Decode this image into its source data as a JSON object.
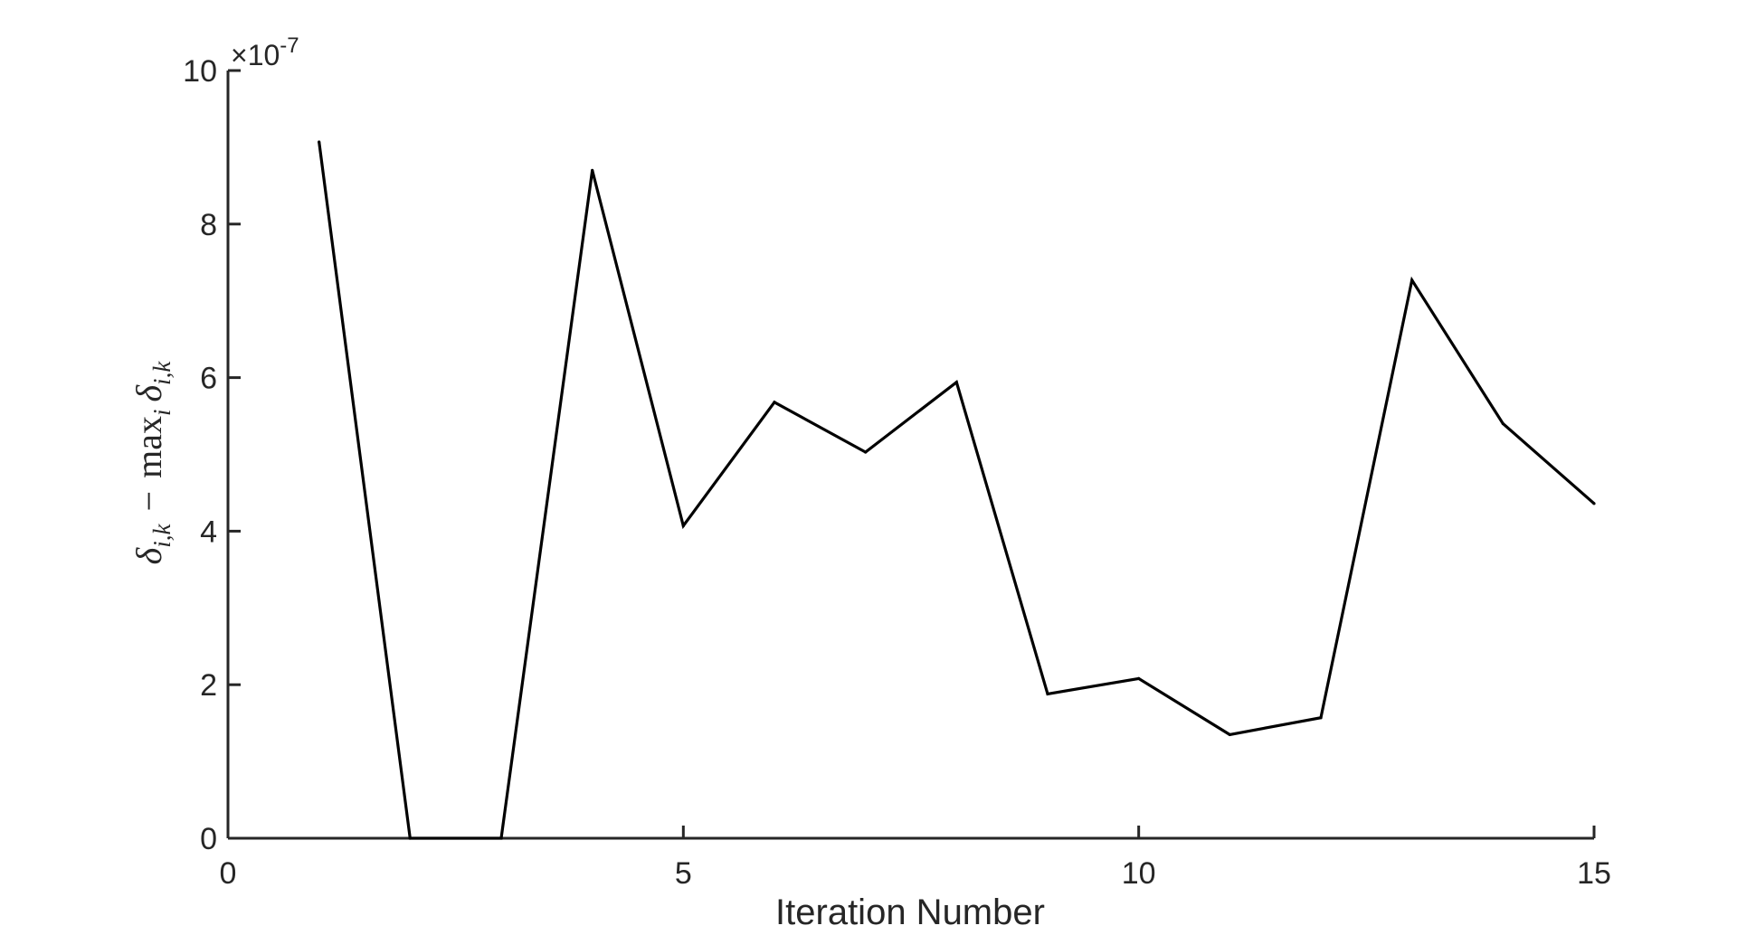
{
  "chart_data": {
    "type": "line",
    "title": "",
    "xlabel": "Iteration Number",
    "ylabel": {
      "delta": "δ",
      "sub": "i,k",
      "minus": "−",
      "max": "max",
      "max_sub": "i"
    },
    "y_multiplier": "×10",
    "y_exponent": "-7",
    "xlim": [
      0,
      15
    ],
    "ylim": [
      0,
      10
    ],
    "xticks": [
      0,
      5,
      10,
      15
    ],
    "yticks": [
      0,
      2,
      4,
      6,
      8,
      10
    ],
    "grid": false,
    "series": [
      {
        "color": "#000000",
        "x": [
          1,
          2,
          3,
          4,
          5,
          6,
          7,
          8,
          9,
          10,
          11,
          12,
          13,
          14,
          15
        ],
        "y": [
          9.07,
          0.0,
          0.0,
          8.7,
          4.07,
          5.68,
          5.03,
          5.94,
          1.88,
          2.08,
          1.35,
          1.57,
          7.27,
          5.4,
          4.36
        ]
      }
    ]
  }
}
